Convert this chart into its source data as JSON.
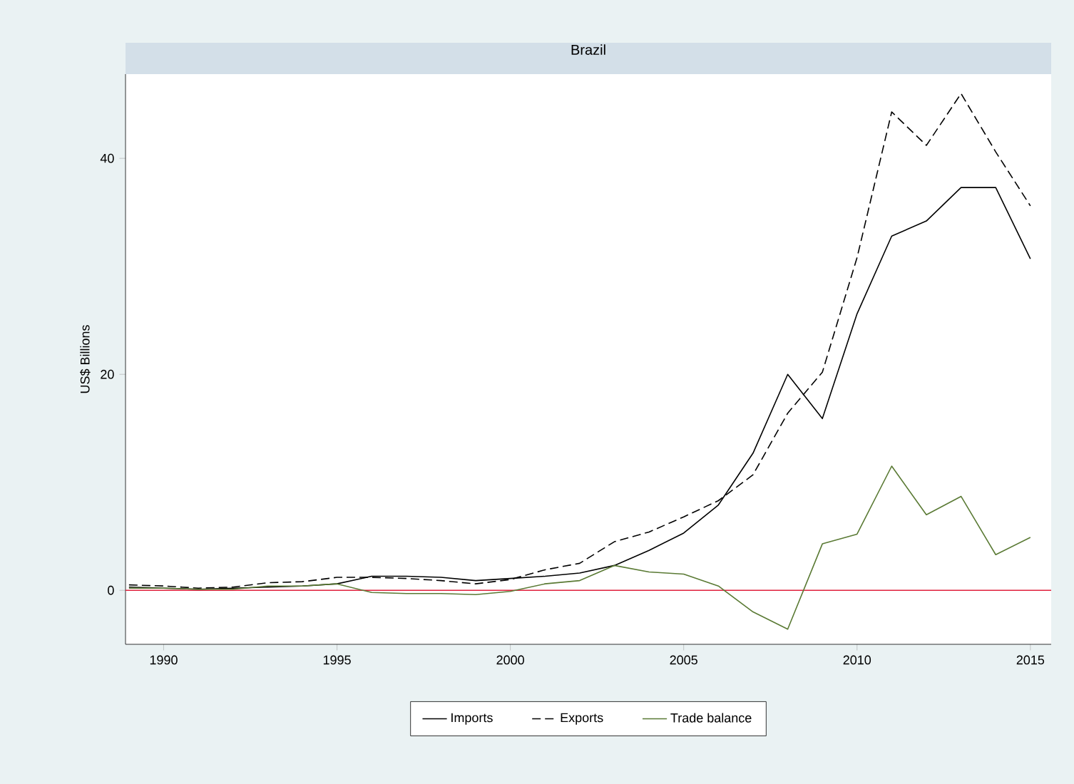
{
  "chart_data": {
    "type": "line",
    "title": "Brazil",
    "ylabel": "US$ Billions",
    "x": [
      1989,
      1990,
      1991,
      1992,
      1993,
      1994,
      1995,
      1996,
      1997,
      1998,
      1999,
      2000,
      2001,
      2002,
      2003,
      2004,
      2005,
      2006,
      2007,
      2008,
      2009,
      2010,
      2011,
      2012,
      2013,
      2014,
      2015
    ],
    "series": [
      {
        "name": "Imports",
        "color": "#000000",
        "line_style": "solid",
        "values": [
          0.3,
          0.2,
          0.1,
          0.2,
          0.3,
          0.4,
          0.6,
          1.3,
          1.3,
          1.2,
          0.9,
          1.1,
          1.3,
          1.6,
          2.3,
          3.7,
          5.3,
          7.9,
          12.7,
          20.0,
          15.9,
          25.6,
          32.8,
          34.2,
          37.3,
          37.3,
          30.7
        ]
      },
      {
        "name": "Exports",
        "color": "#000000",
        "line_style": "dashed",
        "values": [
          0.5,
          0.4,
          0.2,
          0.3,
          0.7,
          0.8,
          1.2,
          1.2,
          1.1,
          0.9,
          0.6,
          1.0,
          1.9,
          2.5,
          4.5,
          5.4,
          6.8,
          8.3,
          10.7,
          16.4,
          20.2,
          30.8,
          44.3,
          41.2,
          46.0,
          40.6,
          35.6
        ]
      },
      {
        "name": "Trade balance",
        "color": "#5a7a34",
        "line_style": "solid",
        "values": [
          0.2,
          0.2,
          0.1,
          0.1,
          0.4,
          0.4,
          0.6,
          -0.2,
          -0.3,
          -0.3,
          -0.4,
          -0.1,
          0.6,
          0.9,
          2.3,
          1.7,
          1.5,
          0.4,
          -2.0,
          -3.6,
          4.3,
          5.2,
          11.5,
          7.0,
          8.7,
          3.3,
          4.9
        ]
      }
    ],
    "xlim": [
      1988.9,
      2015.6
    ],
    "ylim": [
      -5,
      47.8
    ],
    "xticks": [
      1990,
      1995,
      2000,
      2005,
      2010,
      2015
    ],
    "yticks": [
      0,
      20,
      40
    ],
    "ref_lines": [
      {
        "axis": "y",
        "value": 0,
        "color": "#e0203c"
      }
    ],
    "grid": false,
    "legend": "bottom"
  }
}
